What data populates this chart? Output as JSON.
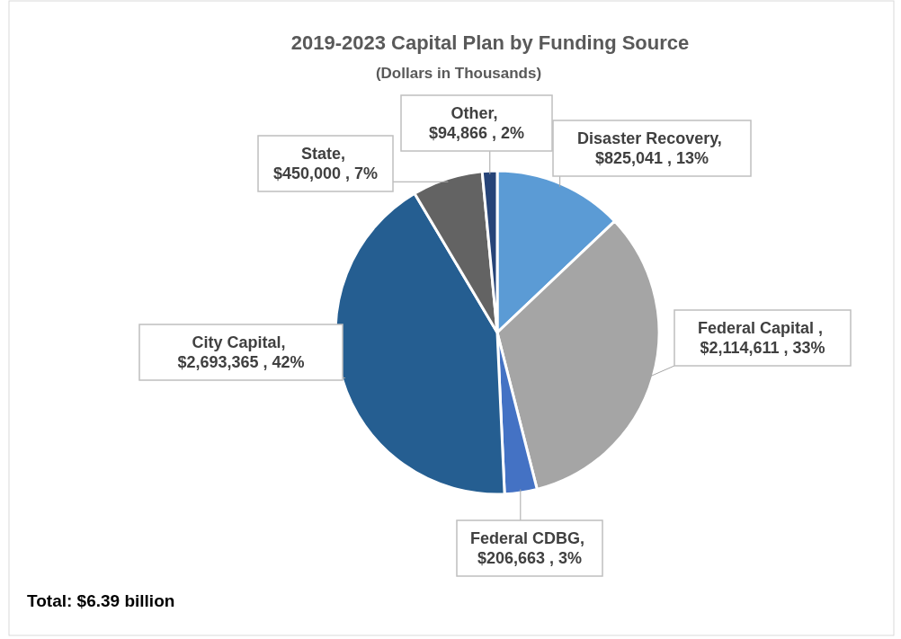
{
  "chart_data": {
    "type": "pie",
    "title": "2019-2023 Capital Plan by Funding Source",
    "subtitle": "(Dollars in Thousands)",
    "categories": [
      "Disaster Recovery",
      "Federal Capital ",
      "Federal CDBG",
      "City Capital",
      "State",
      "Other"
    ],
    "values": [
      825041,
      2114611,
      206663,
      2693365,
      450000,
      94866
    ],
    "colors": [
      "#5b9bd5",
      "#a5a5a5",
      "#4472c4",
      "#255e91",
      "#636363",
      "#264478"
    ],
    "value_labels": [
      ", $825,041 , 13%",
      ", $2,114,611 , 33%",
      ", $206,663 , 3%",
      ", $2,693,365 , 42%",
      ", $450,000 , 7%",
      ", $94,866 , 2%"
    ],
    "annotations": [
      "Total: $6.39 billion"
    ]
  }
}
